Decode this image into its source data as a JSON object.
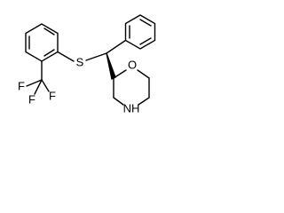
{
  "atoms": {
    "sulfur": "S",
    "oxygen": "O",
    "nitrogen": "NH",
    "fluorine": [
      "F",
      "F",
      "F"
    ]
  }
}
